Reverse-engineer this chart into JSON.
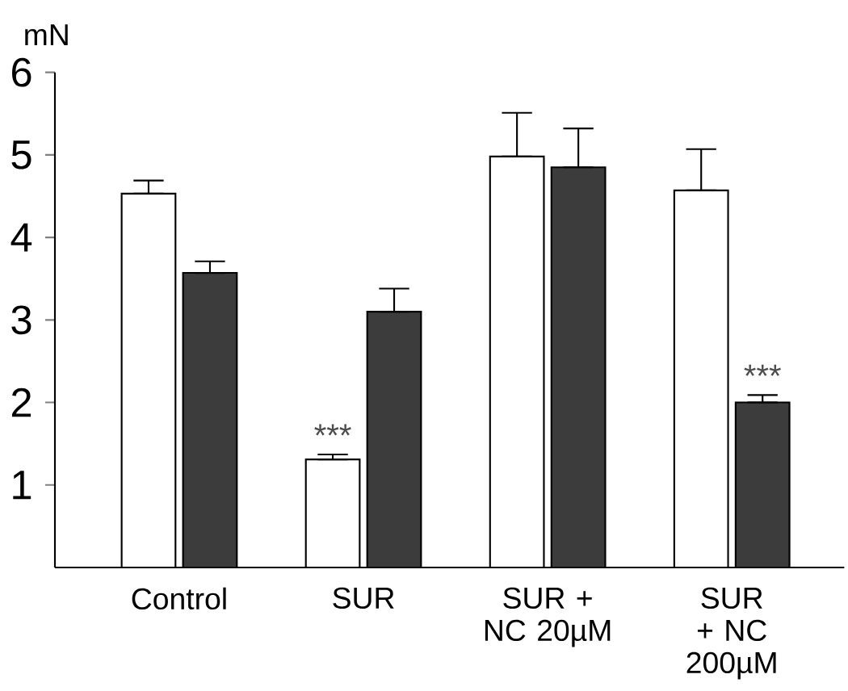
{
  "chart_data": {
    "type": "bar",
    "ylabel": "mN",
    "categories": [
      "Control",
      "SUR",
      "SUR + NC 20µM",
      "SUR + NC 200µM"
    ],
    "series": [
      {
        "color": "#ffffff",
        "values": [
          4.53,
          1.31,
          4.98,
          4.57
        ],
        "errors": [
          [
            4.53,
            4.69
          ],
          [
            1.31,
            1.37
          ],
          [
            4.98,
            5.51
          ],
          [
            4.57,
            5.07
          ]
        ]
      },
      {
        "color": "#3c3c3c",
        "values": [
          3.57,
          3.1,
          4.85,
          2.0
        ],
        "errors": [
          [
            3.57,
            3.71
          ],
          [
            3.1,
            3.38
          ],
          [
            4.85,
            5.32
          ],
          [
            2.0,
            2.09
          ]
        ]
      }
    ],
    "ylim": [
      0,
      6
    ],
    "yticks": [
      1,
      2,
      3,
      4,
      5,
      6
    ],
    "grid": false,
    "annotations": [
      {
        "text": "***",
        "x": "SUR",
        "y": 1.37
      },
      {
        "text": "***",
        "x": "SUR + NC 200µM",
        "y": 2.09
      }
    ]
  }
}
